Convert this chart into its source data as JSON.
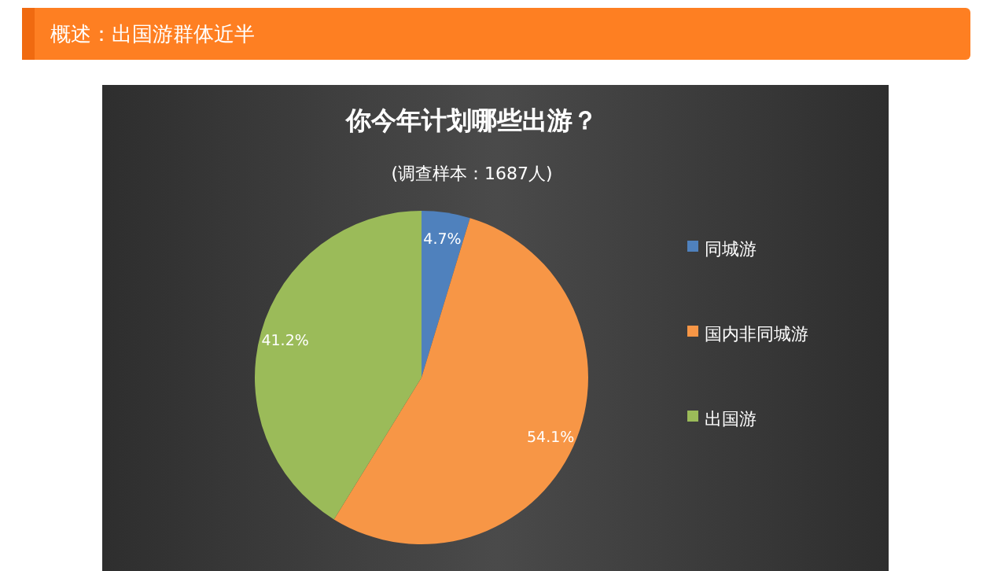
{
  "chart_data": {
    "type": "pie",
    "title": "你今年计划哪些出游？",
    "subtitle": "(调查样本：1687人)",
    "annotations": [
      "概述：出国游群体近半"
    ],
    "categories": [
      "同城游",
      "国内非同城游",
      "出国游"
    ],
    "values": [
      4.7,
      54.1,
      41.2
    ],
    "colors": [
      "#4f81bd",
      "#f79646",
      "#9bbb59"
    ],
    "value_labels": [
      "4.7%",
      "54.1%",
      "41.2%"
    ],
    "legend": "right"
  }
}
